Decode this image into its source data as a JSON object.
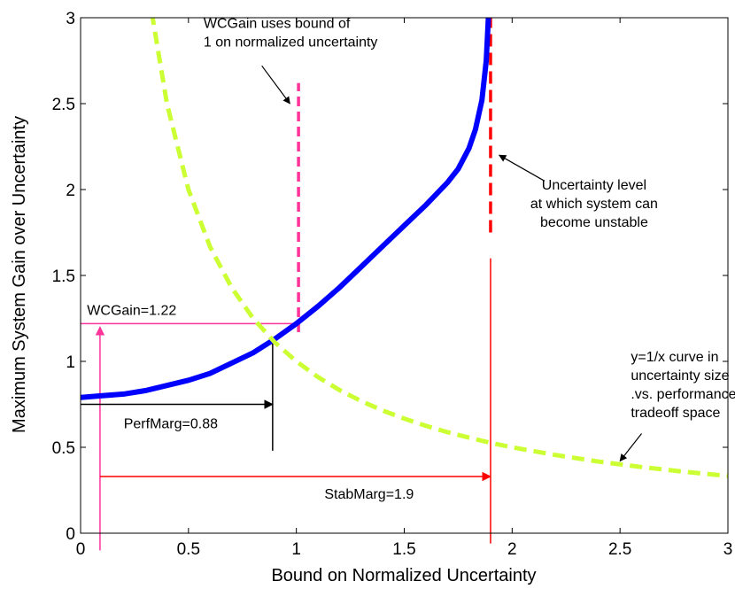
{
  "chart_data": {
    "type": "line",
    "title": "",
    "xlabel": "Bound on Normalized Uncertainty",
    "ylabel": "Maximum System Gain over Uncertainty",
    "xlim": [
      0,
      3
    ],
    "ylim": [
      0,
      3
    ],
    "x_ticks": [
      "0",
      "0.5",
      "1",
      "1.5",
      "2",
      "2.5",
      "3"
    ],
    "y_ticks": [
      "0",
      "0.5",
      "1",
      "1.5",
      "2",
      "2.5",
      "3"
    ],
    "grid": false,
    "legend": "none",
    "colors": {
      "gain_curve": "#0000ff",
      "tradeoff_curve": "#ccff33",
      "pink": "#ff3399",
      "red": "#ff0000",
      "black": "#000000"
    },
    "series": [
      {
        "style": "solid-thick",
        "x": [
          0,
          0.1,
          0.2,
          0.3,
          0.4,
          0.5,
          0.6,
          0.7,
          0.8,
          0.9,
          1.0,
          1.1,
          1.2,
          1.3,
          1.4,
          1.5,
          1.6,
          1.7,
          1.75,
          1.8,
          1.83,
          1.86,
          1.88,
          1.89
        ],
        "y": [
          0.79,
          0.8,
          0.81,
          0.83,
          0.86,
          0.89,
          0.93,
          0.99,
          1.05,
          1.13,
          1.22,
          1.32,
          1.43,
          1.55,
          1.67,
          1.79,
          1.91,
          2.04,
          2.12,
          2.24,
          2.35,
          2.52,
          2.75,
          3.0
        ]
      },
      {
        "style": "dashed",
        "x": [
          0.33,
          0.4,
          0.5,
          0.6,
          0.7,
          0.8,
          0.9,
          1.0,
          1.1,
          1.2,
          1.3,
          1.4,
          1.5,
          1.6,
          1.7,
          1.8,
          1.9,
          2.0,
          2.2,
          2.4,
          2.6,
          2.8,
          3.0
        ],
        "y": [
          3.03,
          2.5,
          2.0,
          1.667,
          1.429,
          1.25,
          1.111,
          1.0,
          0.909,
          0.833,
          0.769,
          0.714,
          0.667,
          0.625,
          0.588,
          0.556,
          0.526,
          0.5,
          0.455,
          0.417,
          0.385,
          0.357,
          0.333
        ]
      }
    ],
    "reference_lines": [
      {
        "kind": "vline",
        "x": 1.01,
        "y_from": 1.17,
        "y_to": 2.62,
        "color": "#ff3399",
        "dash": true
      },
      {
        "kind": "vline",
        "x": 1.9,
        "y_from": 1.75,
        "y_to": 3.0,
        "color": "#ff0000",
        "dash": true
      },
      {
        "kind": "vline",
        "x": 1.9,
        "y_from": -0.06,
        "y_to": 1.6,
        "color": "#ff0000",
        "dash": false
      },
      {
        "kind": "hline",
        "y": 1.22,
        "x_from": 0,
        "x_to": 1.01,
        "color": "#ff3399",
        "dash": false
      },
      {
        "kind": "vline",
        "x": 0.09,
        "y_from": -0.1,
        "y_to": 1.2,
        "color": "#ff3399",
        "dash": false,
        "arrow": "up"
      },
      {
        "kind": "hline",
        "y": 0.33,
        "x_from": 0.09,
        "x_to": 1.9,
        "color": "#ff0000",
        "dash": false,
        "arrow": "right"
      },
      {
        "kind": "vline",
        "x": 0.89,
        "y_from": 0.48,
        "y_to": 1.12,
        "color": "#000000",
        "dash": false
      },
      {
        "kind": "hline",
        "y": 0.75,
        "x_from": 0,
        "x_to": 0.89,
        "color": "#000000",
        "dash": false,
        "arrow": "right"
      }
    ],
    "annotations": [
      {
        "lines": [
          "WCGain uses bound of",
          "1 on normalized uncertainty"
        ],
        "x": 0.57,
        "y": 2.94,
        "anchor": "start",
        "arrow_from": [
          0.84,
          2.72
        ],
        "arrow_to": [
          0.97,
          2.5
        ]
      },
      {
        "lines": [
          "Uncertainty level",
          "at which system can",
          "become unstable"
        ],
        "x": 2.38,
        "y": 2.0,
        "anchor": "middle",
        "arrow_from": [
          2.15,
          2.05
        ],
        "arrow_to": [
          1.94,
          2.2
        ]
      },
      {
        "lines": [
          "WCGain=1.22"
        ],
        "x": 0.03,
        "y": 1.27,
        "anchor": "start"
      },
      {
        "lines": [
          "PerfMarg=0.88"
        ],
        "x": 0.2,
        "y": 0.61,
        "anchor": "start"
      },
      {
        "lines": [
          "StabMarg=1.9"
        ],
        "x": 1.13,
        "y": 0.2,
        "anchor": "start"
      },
      {
        "lines": [
          "y=1/x curve in",
          "uncertainty size",
          ".vs. performance",
          "tradeoff space"
        ],
        "x": 2.55,
        "y": 1.0,
        "anchor": "start",
        "arrow_from": [
          2.6,
          0.58
        ],
        "arrow_to": [
          2.5,
          0.42
        ]
      }
    ]
  }
}
